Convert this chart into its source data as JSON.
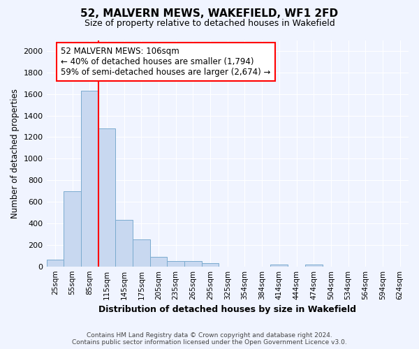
{
  "title": "52, MALVERN MEWS, WAKEFIELD, WF1 2FD",
  "subtitle": "Size of property relative to detached houses in Wakefield",
  "xlabel": "Distribution of detached houses by size in Wakefield",
  "ylabel": "Number of detached properties",
  "annotation_line1": "52 MALVERN MEWS: 106sqm",
  "annotation_line2": "← 40% of detached houses are smaller (1,794)",
  "annotation_line3": "59% of semi-detached houses are larger (2,674) →",
  "bar_color": "#c8d8f0",
  "bar_edge_color": "#7aabcf",
  "vline_color": "red",
  "background_color": "#f0f4ff",
  "annotation_box_color": "white",
  "annotation_box_edge": "red",
  "categories": [
    "25sqm",
    "55sqm",
    "85sqm",
    "115sqm",
    "145sqm",
    "175sqm",
    "205sqm",
    "235sqm",
    "265sqm",
    "295sqm",
    "325sqm",
    "354sqm",
    "384sqm",
    "414sqm",
    "444sqm",
    "474sqm",
    "504sqm",
    "534sqm",
    "564sqm",
    "594sqm",
    "624sqm"
  ],
  "values": [
    65,
    695,
    1630,
    1280,
    435,
    250,
    90,
    50,
    50,
    30,
    0,
    0,
    0,
    20,
    0,
    15,
    0,
    0,
    0,
    0,
    0
  ],
  "ylim": [
    0,
    2100
  ],
  "yticks": [
    0,
    200,
    400,
    600,
    800,
    1000,
    1200,
    1400,
    1600,
    1800,
    2000
  ],
  "footer_line1": "Contains HM Land Registry data © Crown copyright and database right 2024.",
  "footer_line2": "Contains public sector information licensed under the Open Government Licence v3.0."
}
